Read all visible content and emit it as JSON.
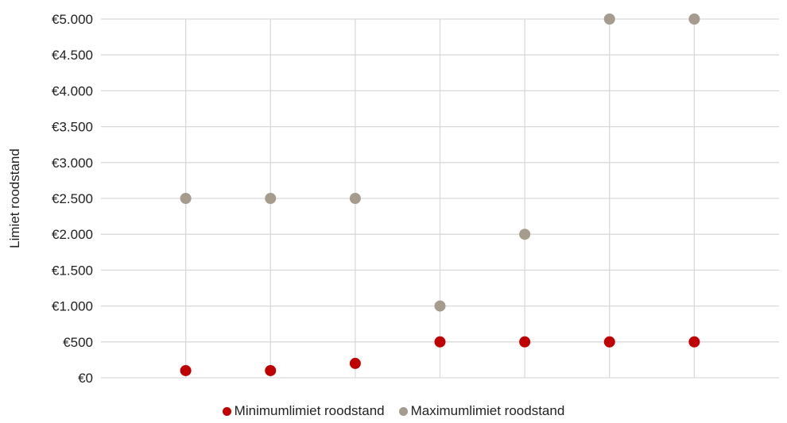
{
  "chart_data": {
    "type": "scatter",
    "title": "",
    "xlabel": "",
    "ylabel": "Limiet roodstand",
    "x": [
      1,
      2,
      3,
      4,
      5,
      6,
      7
    ],
    "xlim": [
      0,
      8
    ],
    "ylim": [
      0,
      5000
    ],
    "y_ticks": [
      0,
      500,
      1000,
      1500,
      2000,
      2500,
      3000,
      3500,
      4000,
      4500,
      5000
    ],
    "y_tick_labels": [
      "€0",
      "€500",
      "€1.000",
      "€1.500",
      "€2.000",
      "€2.500",
      "€3.000",
      "€3.500",
      "€4.000",
      "€4.500",
      "€5.000"
    ],
    "grid": true,
    "legend_position": "bottom",
    "series": [
      {
        "name": "Minimumlimiet roodstand",
        "color": "#c00000",
        "values": [
          100,
          100,
          200,
          500,
          500,
          500,
          500
        ]
      },
      {
        "name": "Maximumlimiet roodstand",
        "color": "#a59c8e",
        "values": [
          2500,
          2500,
          2500,
          1000,
          2000,
          5000,
          5000
        ]
      }
    ]
  }
}
